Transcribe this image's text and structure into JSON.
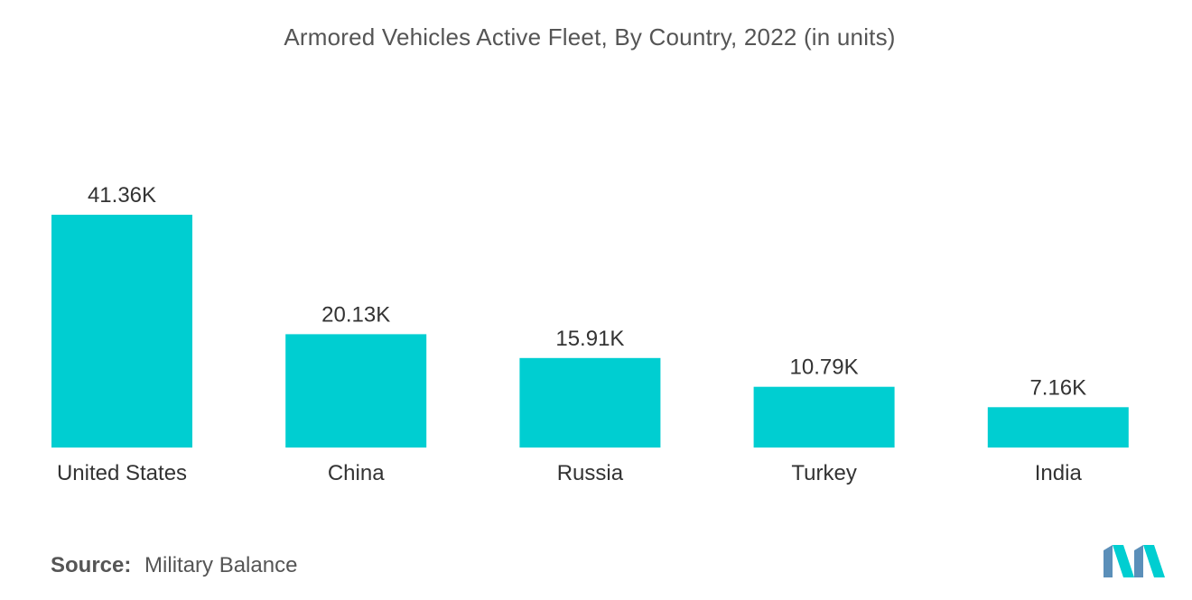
{
  "chart_data": {
    "type": "bar",
    "title": "Armored Vehicles Active Fleet, By Country, 2022 (in units)",
    "categories": [
      "United States",
      "China",
      "Russia",
      "Turkey",
      "India"
    ],
    "values": [
      41360,
      20130,
      15910,
      10790,
      7160
    ],
    "value_labels": [
      "41.36K",
      "20.13K",
      "15.91K",
      "10.79K",
      "7.16K"
    ],
    "xlabel": "",
    "ylabel": "",
    "ylim": [
      0,
      41360
    ],
    "grid": false,
    "legend": "none",
    "bar_color": "#00CED1"
  },
  "source": {
    "label": "Source:",
    "value": "Military Balance"
  },
  "logo": {
    "icon": "mordor-intelligence-logo",
    "colors": [
      "#5b8fb9",
      "#00CED1"
    ]
  }
}
